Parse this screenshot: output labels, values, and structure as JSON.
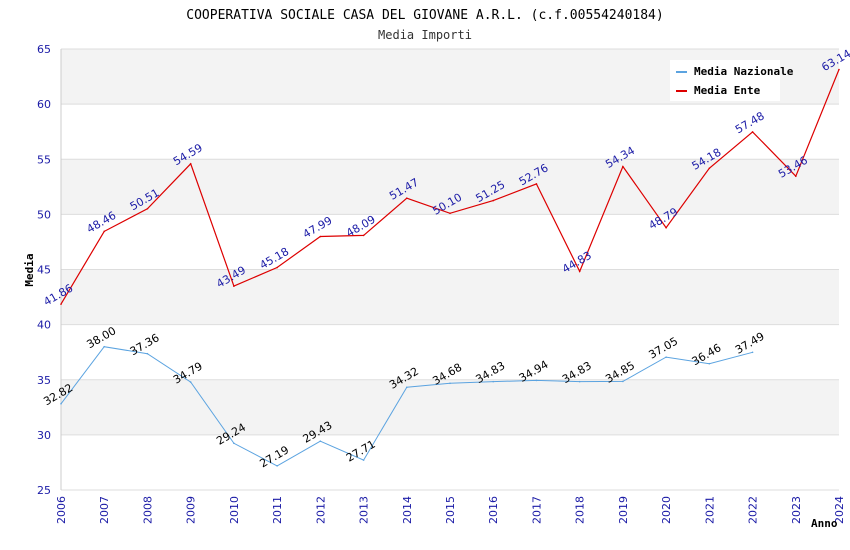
{
  "chart_data": {
    "type": "line",
    "title": "COOPERATIVA SOCIALE CASA DEL GIOVANE A.R.L. (c.f.00554240184)",
    "subtitle": "Media Importi",
    "xlabel": "Anno",
    "ylabel": "Media",
    "ylim": [
      25,
      65
    ],
    "yticks": [
      25,
      30,
      35,
      40,
      45,
      50,
      55,
      60,
      65
    ],
    "x": [
      "2006",
      "2007",
      "2008",
      "2009",
      "2010",
      "2011",
      "2012",
      "2013",
      "2014",
      "2015",
      "2016",
      "2017",
      "2018",
      "2019",
      "2020",
      "2021",
      "2022",
      "2023",
      "2024"
    ],
    "grid": true,
    "legend_position": "top-right",
    "series": [
      {
        "name": "Media Nazionale",
        "color": "#5ba3e0",
        "label_color": "#000000",
        "values": [
          32.82,
          38.0,
          37.36,
          34.79,
          29.24,
          27.19,
          29.43,
          27.71,
          34.32,
          34.68,
          34.83,
          34.94,
          34.83,
          34.85,
          37.05,
          36.46,
          37.49,
          null,
          null
        ]
      },
      {
        "name": "Media Ente",
        "color": "#dd0000",
        "label_color": "#1a1aa6",
        "values": [
          41.86,
          48.46,
          50.51,
          54.59,
          43.49,
          45.18,
          47.99,
          48.09,
          51.47,
          50.1,
          51.25,
          52.76,
          44.83,
          54.34,
          48.79,
          54.18,
          57.48,
          53.46,
          63.14
        ]
      }
    ]
  }
}
